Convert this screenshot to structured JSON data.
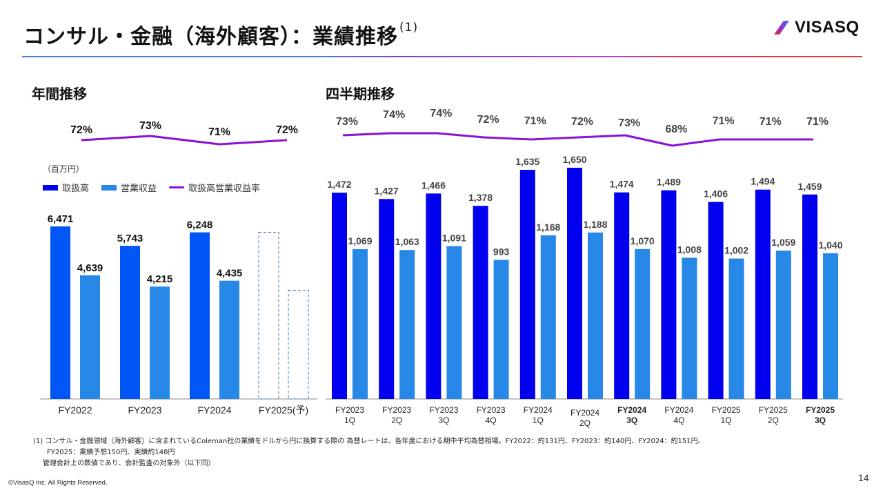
{
  "header": {
    "title": "コンサル・金融（海外顧客）：業績推移",
    "title_note": "(1)",
    "logo_text": "VISASQ"
  },
  "colors": {
    "gross": "#0000ee",
    "annual_gross": "#0055f5",
    "revenue": "#2888e8",
    "ratio_line": "#8a10d8",
    "forecast_border": "#3a78b8"
  },
  "legend": {
    "unit": "（百万円）",
    "items": [
      {
        "label": "取扱高",
        "kind": "bar",
        "color": "#0000ee"
      },
      {
        "label": "営業収益",
        "kind": "bar",
        "color": "#2888e8"
      },
      {
        "label": "取扱高営業収益率",
        "kind": "line",
        "color": "#8a10d8"
      }
    ]
  },
  "chart_data": [
    {
      "type": "bar",
      "title": "年間推移",
      "unit": "百万円",
      "categories": [
        "FY2022",
        "FY2023",
        "FY2024",
        "FY2025(予)"
      ],
      "series": [
        {
          "name": "取扱高",
          "values": [
            6471,
            5743,
            6248,
            null
          ],
          "labels": [
            "6,471",
            "5,743",
            "6,248",
            ""
          ]
        },
        {
          "name": "営業収益",
          "values": [
            4639,
            4215,
            4435,
            null
          ],
          "labels": [
            "4,639",
            "4,215",
            "4,435",
            ""
          ]
        },
        {
          "name": "取扱高営業収益率",
          "type": "line",
          "values": [
            72,
            73,
            71,
            72
          ],
          "labels": [
            "72%",
            "73%",
            "71%",
            "72%"
          ]
        }
      ],
      "forecast": {
        "category": "FY2025(予)",
        "style": "dashed-outline",
        "approx_values": {
          "取扱高": 6250,
          "営業収益": 4530
        }
      },
      "ylim": [
        0,
        7000
      ],
      "grid": false,
      "legend_position": "top-left"
    },
    {
      "type": "bar",
      "title": "四半期推移",
      "unit": "百万円",
      "categories": [
        "FY2023 1Q",
        "FY2023 2Q",
        "FY2023 3Q",
        "FY2023 4Q",
        "FY2024 1Q",
        "FY2024 2Q",
        "FY2024 3Q",
        "FY2024 4Q",
        "FY2025 1Q",
        "FY2025 2Q",
        "FY2025 3Q"
      ],
      "category_lines": [
        [
          "FY2023",
          "1Q"
        ],
        [
          "FY2023",
          "2Q"
        ],
        [
          "FY2023",
          "3Q"
        ],
        [
          "FY2023",
          "4Q"
        ],
        [
          "FY2024",
          "1Q"
        ],
        [
          "FY2024",
          "2Q"
        ],
        [
          "FY2024",
          "3Q"
        ],
        [
          "FY2024",
          "4Q"
        ],
        [
          "FY2025",
          "1Q"
        ],
        [
          "FY2025",
          "2Q"
        ],
        [
          "FY2025",
          "3Q"
        ]
      ],
      "bold_categories": [
        "FY2024 3Q",
        "FY2025 3Q"
      ],
      "series": [
        {
          "name": "取扱高",
          "values": [
            1472,
            1427,
            1466,
            1378,
            1635,
            1650,
            1474,
            1489,
            1406,
            1494,
            1459
          ],
          "labels": [
            "1,472",
            "1,427",
            "1,466",
            "1,378",
            "1,635",
            "1,650",
            "1,474",
            "1,489",
            "1,406",
            "1,494",
            "1,459"
          ]
        },
        {
          "name": "営業収益",
          "values": [
            1069,
            1063,
            1091,
            993,
            1168,
            1188,
            1070,
            1008,
            1002,
            1059,
            1040
          ],
          "labels": [
            "1,069",
            "1,063",
            "1,091",
            "993",
            "1,168",
            "1,188",
            "1,070",
            "1,008",
            "1,002",
            "1,059",
            "1,040"
          ]
        },
        {
          "name": "取扱高営業収益率",
          "type": "line",
          "values": [
            73,
            74,
            74,
            72,
            71,
            72,
            73,
            68,
            71,
            71,
            71
          ],
          "labels": [
            "73%",
            "74%",
            "74%",
            "72%",
            "71%",
            "72%",
            "73%",
            "68%",
            "71%",
            "71%",
            "71%"
          ]
        }
      ],
      "ylim": [
        0,
        1700
      ],
      "grid": false
    }
  ],
  "footnotes": {
    "line1": "(1) コンサル・金融領域（海外顧客）に含まれているColeman社の業績をドルから円に換算する際の 為替レートは、各年度における期中平均為替相場。FY2022：約131円、FY2023：約140円、FY2024：約151円、",
    "line2": "FY2025：業績予想150円、実績約148円",
    "line3": "管理会計上の数値であり、会計監査の対象外（以下同）"
  },
  "copyright": "©VisasQ Inc. All Rights Reserved.",
  "page_number": "14"
}
